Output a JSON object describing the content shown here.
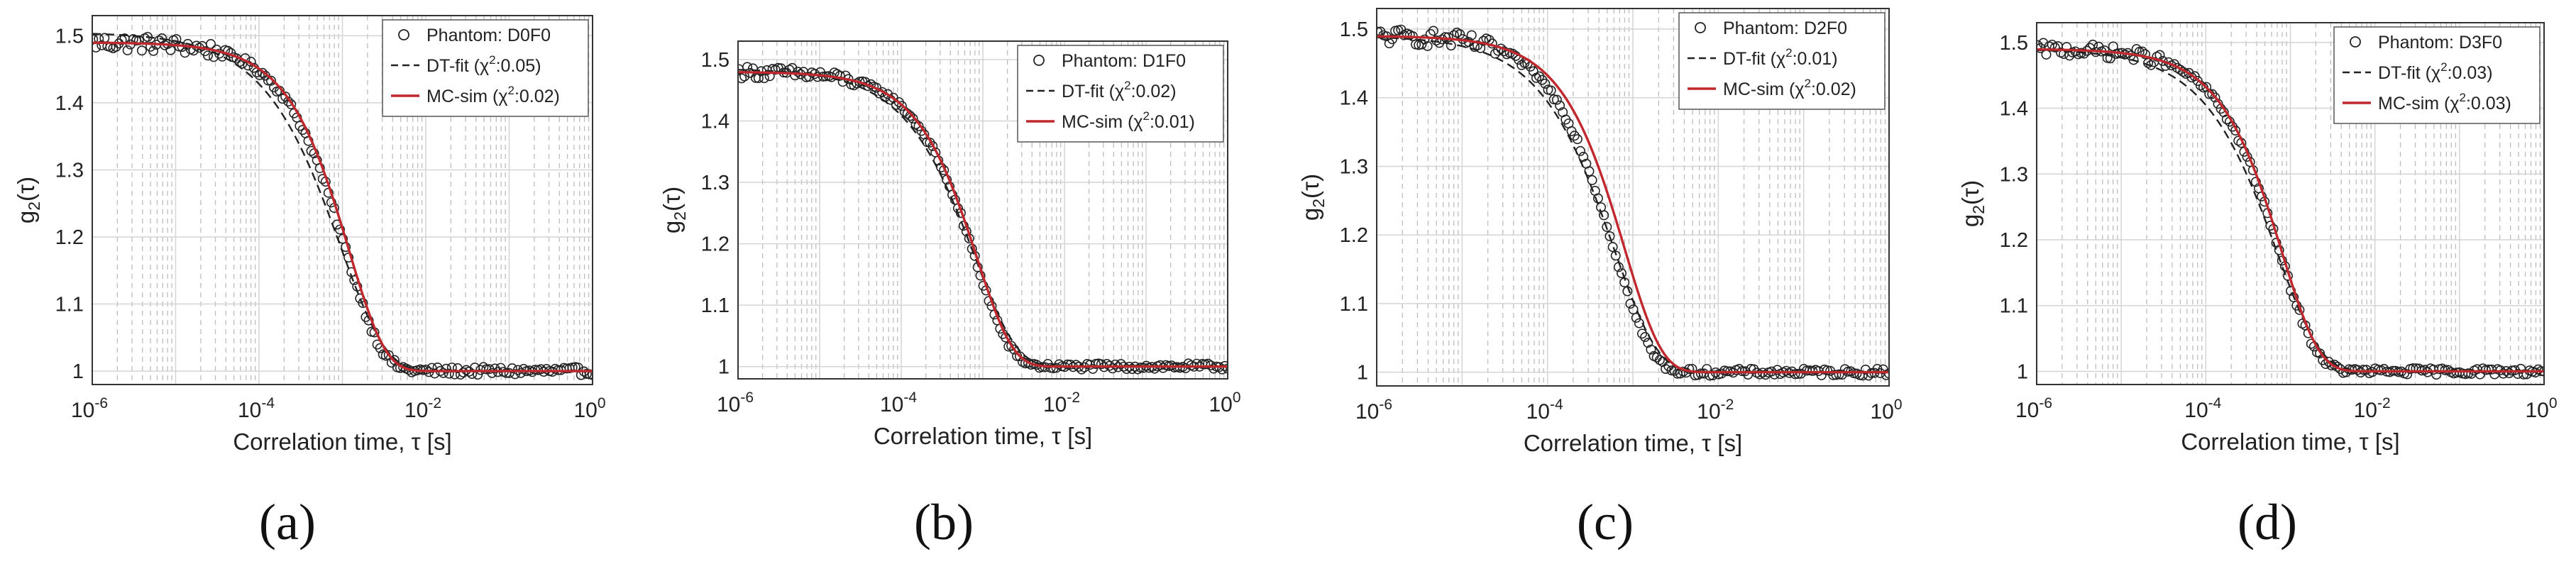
{
  "figure": {
    "captions": [
      "(a)",
      "(b)",
      "(c)",
      "(d)"
    ]
  },
  "colors": {
    "data_marker": "#222222",
    "dt_fit": "#222222",
    "mc_sim": "#c0282d",
    "grid_major": "#d4d4d4",
    "grid_minor": "#bdbdbd",
    "axes": "#333333"
  },
  "chart_data": [
    {
      "type": "scatter",
      "panel": "(a)",
      "xscale": "log",
      "xlim": [
        1e-06,
        1
      ],
      "ylim": [
        0.98,
        1.53
      ],
      "xticks": [
        1e-06,
        0.0001,
        0.01,
        1
      ],
      "xtick_labels": [
        {
          "base": "10",
          "exp": "-6"
        },
        {
          "base": "10",
          "exp": "-4"
        },
        {
          "base": "10",
          "exp": "-2"
        },
        {
          "base": "10",
          "exp": "0"
        }
      ],
      "yticks": [
        1,
        1.1,
        1.2,
        1.3,
        1.4,
        1.5
      ],
      "ytick_labels": [
        "1",
        "1.1",
        "1.2",
        "1.3",
        "1.4",
        "1.5"
      ],
      "xlabel": "Correlation time, τ [s]",
      "ylabel": {
        "base": "g",
        "sub": "2",
        "rest": "(τ)"
      },
      "legend_position": "top-right",
      "legend": [
        {
          "label": "Phantom: D0F0",
          "pre": "",
          "post": ""
        },
        {
          "label": "DT-fit (χ²:0.05)",
          "pre": "DT-fit (χ",
          "post": ":0.05)"
        },
        {
          "label": "MC-sim (χ²:0.02)",
          "pre": "MC-sim (χ",
          "post": ":0.02)"
        }
      ],
      "series": [
        {
          "name": "Phantom: D0F0",
          "kind": "markers",
          "beta": 0.49,
          "tau_c": 0.0011,
          "noise_early": 0.012,
          "noise_late": 0.006
        },
        {
          "name": "DT-fit",
          "kind": "dashed",
          "beta": 0.505,
          "tau_c": 0.00095,
          "shape": 0.8
        },
        {
          "name": "MC-sim",
          "kind": "solid",
          "beta": 0.49,
          "tau_c": 0.0012
        }
      ]
    },
    {
      "type": "scatter",
      "panel": "(b)",
      "xscale": "log",
      "xlim": [
        1e-06,
        1
      ],
      "ylim": [
        0.98,
        1.53
      ],
      "xticks": [
        1e-06,
        0.0001,
        0.01,
        1
      ],
      "xtick_labels": [
        {
          "base": "10",
          "exp": "-6"
        },
        {
          "base": "10",
          "exp": "-4"
        },
        {
          "base": "10",
          "exp": "-2"
        },
        {
          "base": "10",
          "exp": "0"
        }
      ],
      "yticks": [
        1,
        1.1,
        1.2,
        1.3,
        1.4,
        1.5
      ],
      "ytick_labels": [
        "1",
        "1.1",
        "1.2",
        "1.3",
        "1.4",
        "1.5"
      ],
      "xlabel": "Correlation time, τ [s]",
      "ylabel": {
        "base": "g",
        "sub": "2",
        "rest": "(τ)"
      },
      "legend_position": "top-right",
      "legend": [
        {
          "label": "Phantom: D1F0",
          "pre": "",
          "post": ""
        },
        {
          "label": "DT-fit (χ²:0.02)",
          "pre": "DT-fit (χ",
          "post": ":0.02)"
        },
        {
          "label": "MC-sim (χ²:0.01)",
          "pre": "MC-sim (χ",
          "post": ":0.01)"
        }
      ],
      "series": [
        {
          "name": "Phantom: D1F0",
          "kind": "markers",
          "beta": 0.48,
          "tau_c": 0.0008,
          "noise_early": 0.01,
          "noise_late": 0.005
        },
        {
          "name": "DT-fit",
          "kind": "dashed",
          "beta": 0.485,
          "tau_c": 0.0008,
          "shape": 0.85
        },
        {
          "name": "MC-sim",
          "kind": "solid",
          "beta": 0.48,
          "tau_c": 0.00085
        }
      ]
    },
    {
      "type": "scatter",
      "panel": "(c)",
      "xscale": "log",
      "xlim": [
        1e-06,
        1
      ],
      "ylim": [
        0.98,
        1.53
      ],
      "xticks": [
        1e-06,
        0.0001,
        0.01,
        1
      ],
      "xtick_labels": [
        {
          "base": "10",
          "exp": "-6"
        },
        {
          "base": "10",
          "exp": "-4"
        },
        {
          "base": "10",
          "exp": "-2"
        },
        {
          "base": "10",
          "exp": "0"
        }
      ],
      "yticks": [
        1,
        1.1,
        1.2,
        1.3,
        1.4,
        1.5
      ],
      "ytick_labels": [
        "1",
        "1.1",
        "1.2",
        "1.3",
        "1.4",
        "1.5"
      ],
      "xlabel": "Correlation time, τ [s]",
      "ylabel": {
        "base": "g",
        "sub": "2",
        "rest": "(τ)"
      },
      "legend_position": "top-right",
      "legend": [
        {
          "label": "Phantom: D2F0",
          "pre": "",
          "post": ""
        },
        {
          "label": "DT-fit (χ²:0.01)",
          "pre": "DT-fit (χ",
          "post": ":0.01)"
        },
        {
          "label": "MC-sim (χ²:0.02)",
          "pre": "MC-sim (χ",
          "post": ":0.02)"
        }
      ],
      "series": [
        {
          "name": "Phantom: D2F0",
          "kind": "markers",
          "beta": 0.49,
          "tau_c": 0.0006,
          "noise_early": 0.012,
          "noise_late": 0.005
        },
        {
          "name": "DT-fit",
          "kind": "dashed",
          "beta": 0.49,
          "tau_c": 0.0006,
          "shape": 0.85
        },
        {
          "name": "MC-sim",
          "kind": "solid",
          "beta": 0.49,
          "tau_c": 0.0008
        }
      ]
    },
    {
      "type": "scatter",
      "panel": "(d)",
      "xscale": "log",
      "xlim": [
        1e-06,
        1
      ],
      "ylim": [
        0.98,
        1.53
      ],
      "xticks": [
        1e-06,
        0.0001,
        0.01,
        1
      ],
      "xtick_labels": [
        {
          "base": "10",
          "exp": "-6"
        },
        {
          "base": "10",
          "exp": "-4"
        },
        {
          "base": "10",
          "exp": "-2"
        },
        {
          "base": "10",
          "exp": "0"
        }
      ],
      "yticks": [
        1,
        1.1,
        1.2,
        1.3,
        1.4,
        1.5
      ],
      "ytick_labels": [
        "1",
        "1.1",
        "1.2",
        "1.3",
        "1.4",
        "1.5"
      ],
      "xlabel": "Correlation time, τ [s]",
      "ylabel": {
        "base": "g",
        "sub": "2",
        "rest": "(τ)"
      },
      "legend_position": "top-right",
      "legend": [
        {
          "label": "Phantom: D3F0",
          "pre": "",
          "post": ""
        },
        {
          "label": "DT-fit (χ²:0.03)",
          "pre": "DT-fit (χ",
          "post": ":0.03)"
        },
        {
          "label": "MC-sim (χ²:0.03)",
          "pre": "MC-sim (χ",
          "post": ":0.03)"
        }
      ],
      "series": [
        {
          "name": "Phantom: D3F0",
          "kind": "markers",
          "beta": 0.49,
          "tau_c": 0.00075,
          "noise_early": 0.01,
          "noise_late": 0.005
        },
        {
          "name": "DT-fit",
          "kind": "dashed",
          "beta": 0.49,
          "tau_c": 0.0007,
          "shape": 0.85
        },
        {
          "name": "MC-sim",
          "kind": "solid",
          "beta": 0.49,
          "tau_c": 0.0008
        }
      ]
    }
  ]
}
